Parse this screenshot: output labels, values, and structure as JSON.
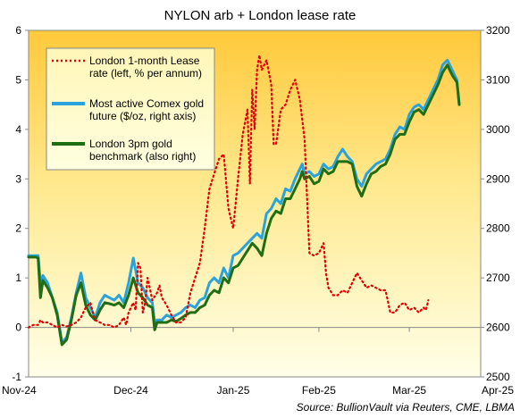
{
  "chart_data": {
    "type": "line",
    "title": "NYLON  arb + London lease rate",
    "source": "Source: BullionVault via Reuters, CME, LBMA",
    "x_categories": [
      "Nov-24",
      "Dec-24",
      "Jan-25",
      "Feb-25",
      "Mar-25",
      "Apr-25"
    ],
    "y_left": {
      "ylim": [
        -1,
        6
      ],
      "ticks": [
        "-1",
        "0",
        "1",
        "2",
        "3",
        "4",
        "5",
        "6"
      ]
    },
    "y_right": {
      "ylim": [
        2500,
        3200
      ],
      "ticks": [
        "2500",
        "2600",
        "2700",
        "2800",
        "2900",
        "3000",
        "3100",
        "3200"
      ]
    },
    "grid": false,
    "legend_position": "top-left",
    "colors": {
      "lease": "#e00000",
      "comex": "#2aa3dc",
      "london": "#1f6e14"
    },
    "series": [
      {
        "key": "lease",
        "name": "London 1-month Lease rate (left, % per annum)",
        "legend_lines": [
          "London 1-month Lease",
          "rate (left, % per annum)"
        ],
        "axis": "left",
        "style": "dotted",
        "points": [
          [
            0,
            0.0
          ],
          [
            2,
            0.05
          ],
          [
            4,
            0.05
          ],
          [
            5,
            0.15
          ],
          [
            6,
            0.1
          ],
          [
            8,
            0.1
          ],
          [
            10,
            0.05
          ],
          [
            12,
            0.0
          ],
          [
            14,
            0.05
          ],
          [
            16,
            0.02
          ],
          [
            18,
            0.05
          ],
          [
            20,
            0.1
          ],
          [
            22,
            0.2
          ],
          [
            24,
            0.4
          ],
          [
            26,
            0.5
          ],
          [
            27,
            0.3
          ],
          [
            28,
            0.15
          ],
          [
            30,
            0.1
          ],
          [
            32,
            0.05
          ],
          [
            34,
            0.05
          ],
          [
            36,
            0.0
          ],
          [
            38,
            0.05
          ],
          [
            40,
            0.2
          ],
          [
            41,
            0.05
          ],
          [
            42,
            0.3
          ],
          [
            44,
            0.5
          ],
          [
            45,
            0.35
          ],
          [
            46,
            1.3
          ],
          [
            47,
            1.2
          ],
          [
            48,
            0.3
          ],
          [
            49,
            0.5
          ],
          [
            50,
            1.0
          ],
          [
            52,
            0.55
          ],
          [
            54,
            0.7
          ],
          [
            55,
            0.85
          ],
          [
            56,
            0.6
          ],
          [
            58,
            0.45
          ],
          [
            60,
            0.25
          ],
          [
            62,
            0.1
          ],
          [
            64,
            0.1
          ],
          [
            66,
            0.2
          ],
          [
            68,
            0.7
          ],
          [
            70,
            1.0
          ],
          [
            72,
            1.3
          ],
          [
            74,
            2.0
          ],
          [
            76,
            2.8
          ],
          [
            78,
            3.1
          ],
          [
            80,
            3.4
          ],
          [
            82,
            3.5
          ],
          [
            84,
            2.4
          ],
          [
            86,
            2.0
          ],
          [
            88,
            3.0
          ],
          [
            90,
            3.9
          ],
          [
            92,
            4.4
          ],
          [
            93,
            2.9
          ],
          [
            94,
            4.8
          ],
          [
            95,
            4.0
          ],
          [
            96,
            5.2
          ],
          [
            97,
            5.5
          ],
          [
            98,
            5.2
          ],
          [
            100,
            5.4
          ],
          [
            102,
            4.9
          ],
          [
            103,
            3.7
          ],
          [
            104,
            3.7
          ],
          [
            106,
            4.4
          ],
          [
            108,
            4.5
          ],
          [
            110,
            4.8
          ],
          [
            112,
            5.0
          ],
          [
            114,
            4.6
          ],
          [
            116,
            3.8
          ],
          [
            118,
            1.5
          ],
          [
            120,
            1.45
          ],
          [
            122,
            1.5
          ],
          [
            124,
            1.7
          ],
          [
            125,
            1.1
          ],
          [
            126,
            0.8
          ],
          [
            128,
            0.65
          ],
          [
            130,
            0.65
          ],
          [
            132,
            0.75
          ],
          [
            134,
            0.7
          ],
          [
            136,
            0.9
          ],
          [
            138,
            1.1
          ],
          [
            140,
            0.95
          ],
          [
            142,
            0.8
          ],
          [
            144,
            0.85
          ],
          [
            146,
            0.8
          ],
          [
            148,
            0.75
          ],
          [
            150,
            0.75
          ],
          [
            152,
            0.3
          ],
          [
            154,
            0.3
          ],
          [
            156,
            0.45
          ],
          [
            158,
            0.5
          ],
          [
            160,
            0.35
          ],
          [
            162,
            0.4
          ],
          [
            163,
            0.35
          ],
          [
            164,
            0.3
          ],
          [
            166,
            0.4
          ],
          [
            167,
            0.35
          ],
          [
            168,
            0.55
          ]
        ]
      },
      {
        "key": "comex",
        "name": "Most active Comex gold future ($/oz, right axis)",
        "legend_lines": [
          "Most active Comex gold",
          "future ($/oz, right axis)"
        ],
        "axis": "right",
        "style": "solid",
        "points": [
          [
            0,
            2745
          ],
          [
            3,
            2745
          ],
          [
            4,
            2745
          ],
          [
            5,
            2690
          ],
          [
            6,
            2705
          ],
          [
            8,
            2690
          ],
          [
            10,
            2660
          ],
          [
            12,
            2630
          ],
          [
            14,
            2570
          ],
          [
            16,
            2580
          ],
          [
            18,
            2620
          ],
          [
            20,
            2670
          ],
          [
            22,
            2710
          ],
          [
            24,
            2660
          ],
          [
            26,
            2640
          ],
          [
            28,
            2620
          ],
          [
            30,
            2650
          ],
          [
            32,
            2665
          ],
          [
            34,
            2660
          ],
          [
            36,
            2655
          ],
          [
            38,
            2665
          ],
          [
            40,
            2650
          ],
          [
            42,
            2690
          ],
          [
            44,
            2740
          ],
          [
            46,
            2690
          ],
          [
            48,
            2680
          ],
          [
            50,
            2660
          ],
          [
            52,
            2650
          ],
          [
            53,
            2610
          ],
          [
            54,
            2615
          ],
          [
            56,
            2615
          ],
          [
            58,
            2625
          ],
          [
            60,
            2620
          ],
          [
            62,
            2625
          ],
          [
            64,
            2630
          ],
          [
            66,
            2640
          ],
          [
            68,
            2645
          ],
          [
            70,
            2640
          ],
          [
            72,
            2655
          ],
          [
            74,
            2660
          ],
          [
            76,
            2690
          ],
          [
            78,
            2700
          ],
          [
            80,
            2690
          ],
          [
            82,
            2720
          ],
          [
            84,
            2700
          ],
          [
            86,
            2745
          ],
          [
            88,
            2750
          ],
          [
            90,
            2760
          ],
          [
            92,
            2770
          ],
          [
            94,
            2780
          ],
          [
            96,
            2790
          ],
          [
            98,
            2780
          ],
          [
            100,
            2830
          ],
          [
            102,
            2840
          ],
          [
            104,
            2860
          ],
          [
            106,
            2850
          ],
          [
            108,
            2880
          ],
          [
            110,
            2875
          ],
          [
            112,
            2900
          ],
          [
            114,
            2920
          ],
          [
            115,
            2930
          ],
          [
            116,
            2910
          ],
          [
            118,
            2915
          ],
          [
            120,
            2905
          ],
          [
            122,
            2910
          ],
          [
            124,
            2930
          ],
          [
            126,
            2920
          ],
          [
            128,
            2925
          ],
          [
            130,
            2945
          ],
          [
            132,
            2960
          ],
          [
            134,
            2945
          ],
          [
            136,
            2935
          ],
          [
            138,
            2900
          ],
          [
            140,
            2885
          ],
          [
            142,
            2910
          ],
          [
            144,
            2920
          ],
          [
            146,
            2930
          ],
          [
            148,
            2935
          ],
          [
            150,
            2940
          ],
          [
            152,
            2960
          ],
          [
            154,
            2990
          ],
          [
            156,
            3005
          ],
          [
            158,
            3000
          ],
          [
            160,
            3030
          ],
          [
            162,
            3045
          ],
          [
            164,
            3050
          ],
          [
            166,
            3040
          ],
          [
            168,
            3060
          ],
          [
            170,
            3080
          ],
          [
            172,
            3100
          ],
          [
            174,
            3130
          ],
          [
            176,
            3140
          ],
          [
            178,
            3120
          ],
          [
            180,
            3100
          ],
          [
            181,
            3050
          ]
        ]
      },
      {
        "key": "london",
        "name": "London 3pm gold benchmark (also right)",
        "legend_lines": [
          "London 3pm gold",
          "benchmark (also right)"
        ],
        "axis": "right",
        "style": "solid",
        "points": [
          [
            0,
            2742
          ],
          [
            3,
            2742
          ],
          [
            4,
            2740
          ],
          [
            5,
            2660
          ],
          [
            6,
            2695
          ],
          [
            8,
            2680
          ],
          [
            10,
            2660
          ],
          [
            12,
            2625
          ],
          [
            14,
            2565
          ],
          [
            16,
            2575
          ],
          [
            18,
            2615
          ],
          [
            20,
            2665
          ],
          [
            22,
            2690
          ],
          [
            24,
            2645
          ],
          [
            26,
            2625
          ],
          [
            28,
            2615
          ],
          [
            30,
            2635
          ],
          [
            32,
            2650
          ],
          [
            34,
            2648
          ],
          [
            36,
            2645
          ],
          [
            38,
            2650
          ],
          [
            40,
            2640
          ],
          [
            42,
            2665
          ],
          [
            44,
            2700
          ],
          [
            46,
            2670
          ],
          [
            48,
            2660
          ],
          [
            50,
            2645
          ],
          [
            52,
            2640
          ],
          [
            53,
            2595
          ],
          [
            54,
            2610
          ],
          [
            56,
            2610
          ],
          [
            58,
            2610
          ],
          [
            60,
            2615
          ],
          [
            62,
            2612
          ],
          [
            64,
            2618
          ],
          [
            66,
            2625
          ],
          [
            68,
            2630
          ],
          [
            70,
            2630
          ],
          [
            72,
            2640
          ],
          [
            74,
            2645
          ],
          [
            76,
            2665
          ],
          [
            78,
            2675
          ],
          [
            80,
            2670
          ],
          [
            82,
            2700
          ],
          [
            84,
            2690
          ],
          [
            86,
            2720
          ],
          [
            88,
            2725
          ],
          [
            90,
            2740
          ],
          [
            92,
            2755
          ],
          [
            94,
            2770
          ],
          [
            96,
            2760
          ],
          [
            98,
            2745
          ],
          [
            100,
            2790
          ],
          [
            102,
            2820
          ],
          [
            104,
            2835
          ],
          [
            106,
            2830
          ],
          [
            108,
            2860
          ],
          [
            110,
            2860
          ],
          [
            112,
            2880
          ],
          [
            114,
            2900
          ],
          [
            115,
            2915
          ],
          [
            116,
            2900
          ],
          [
            118,
            2905
          ],
          [
            120,
            2890
          ],
          [
            122,
            2895
          ],
          [
            124,
            2920
          ],
          [
            126,
            2910
          ],
          [
            128,
            2915
          ],
          [
            130,
            2935
          ],
          [
            132,
            2935
          ],
          [
            134,
            2935
          ],
          [
            136,
            2930
          ],
          [
            138,
            2885
          ],
          [
            140,
            2865
          ],
          [
            142,
            2890
          ],
          [
            144,
            2910
          ],
          [
            146,
            2915
          ],
          [
            148,
            2925
          ],
          [
            150,
            2930
          ],
          [
            152,
            2950
          ],
          [
            154,
            2980
          ],
          [
            156,
            2990
          ],
          [
            158,
            2990
          ],
          [
            160,
            3015
          ],
          [
            162,
            3035
          ],
          [
            164,
            3040
          ],
          [
            166,
            3030
          ],
          [
            168,
            3050
          ],
          [
            170,
            3070
          ],
          [
            172,
            3090
          ],
          [
            174,
            3115
          ],
          [
            176,
            3130
          ],
          [
            178,
            3110
          ],
          [
            180,
            3095
          ],
          [
            181,
            3050
          ]
        ]
      }
    ]
  }
}
